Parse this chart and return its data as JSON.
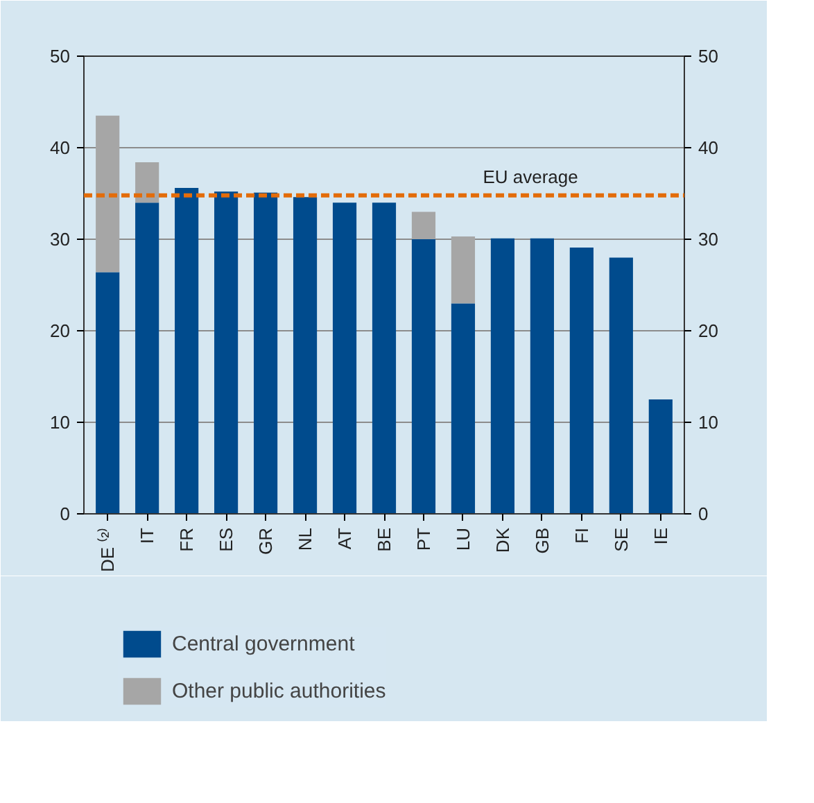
{
  "chart_data": {
    "type": "bar",
    "stacked": true,
    "categories": [
      "DE ⁽²⁾",
      "IT",
      "FR",
      "ES",
      "GR",
      "NL",
      "AT",
      "BE",
      "PT",
      "LU",
      "DK",
      "GB",
      "FI",
      "SE",
      "IE"
    ],
    "series": [
      {
        "name": "Central government",
        "color": "#004b8d",
        "values": [
          26.4,
          34.0,
          35.6,
          35.2,
          35.1,
          34.6,
          34.0,
          34.0,
          30.0,
          23.0,
          30.1,
          30.1,
          29.1,
          28.0,
          12.5
        ]
      },
      {
        "name": "Other public authorities",
        "color": "#a6a6a6",
        "values": [
          17.1,
          4.4,
          null,
          null,
          null,
          null,
          null,
          null,
          3.0,
          7.3,
          null,
          null,
          null,
          null,
          null
        ]
      }
    ],
    "ylim": [
      0,
      50
    ],
    "yticks": [
      0,
      10,
      20,
      30,
      40,
      50
    ],
    "y2lim": [
      0,
      50
    ],
    "y2ticks": [
      0,
      10,
      20,
      30,
      40,
      50
    ],
    "grid": "y",
    "legend": "bottom",
    "ref_lines": [
      {
        "axis": "y",
        "value": 34.8,
        "label": "EU average",
        "color": "#e36c0a",
        "line_style": "dashed"
      }
    ]
  }
}
